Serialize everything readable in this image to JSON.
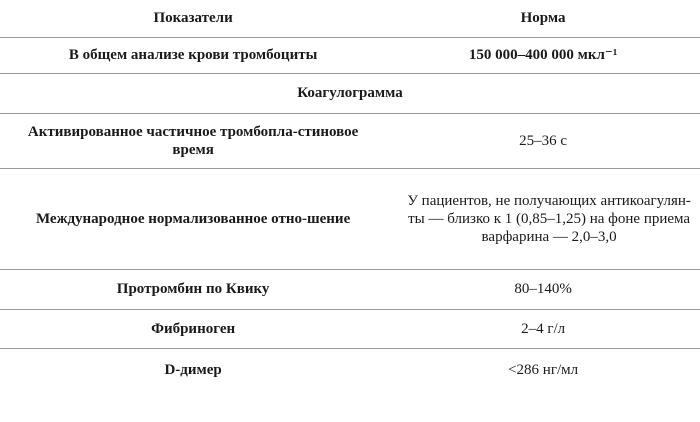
{
  "header": {
    "col1": "Показатели",
    "col2": "Норма"
  },
  "rows": [
    {
      "indicator": "В общем анализе крови тромбоциты",
      "norm": "150 000–400 000 мкл⁻¹"
    },
    {
      "section": "Коагулограмма"
    },
    {
      "indicator": "Активированное частичное тромбопла-стиновое время",
      "norm": "25–36 с"
    },
    {
      "indicator": "Международное нормализованное отно-шение",
      "norm": "У пациентов, не получающих антикоагулян-ты — близко к 1 (0,85–1,25) на фоне приема варфарина — 2,0–3,0"
    },
    {
      "indicator": "Протромбин по Квику",
      "norm": "80–140%"
    },
    {
      "indicator": "Фибриноген",
      "norm": "2–4 г/л"
    },
    {
      "indicator": "D-димер",
      "norm": "<286 нг/мл"
    }
  ]
}
